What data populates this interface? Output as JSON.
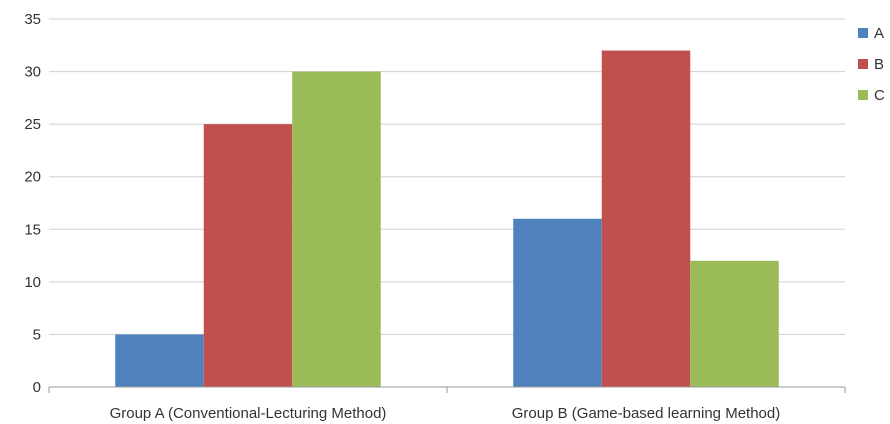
{
  "chart_data": {
    "type": "bar",
    "categories": [
      "Group A (Conventional-Lecturing Method)",
      "Group B (Game-based learning Method)"
    ],
    "series": [
      {
        "name": "A",
        "values": [
          5,
          16
        ],
        "color": "#4f81bd"
      },
      {
        "name": "B",
        "values": [
          25,
          32
        ],
        "color": "#c0504d"
      },
      {
        "name": "C",
        "values": [
          30,
          12
        ],
        "color": "#9bbb59"
      }
    ],
    "yticks": [
      "0",
      "5",
      "10",
      "15",
      "20",
      "25",
      "30",
      "35"
    ],
    "ylim": [
      0,
      35
    ],
    "grid": true,
    "legend": "top-right",
    "title": "",
    "xlabel": "",
    "ylabel": ""
  }
}
